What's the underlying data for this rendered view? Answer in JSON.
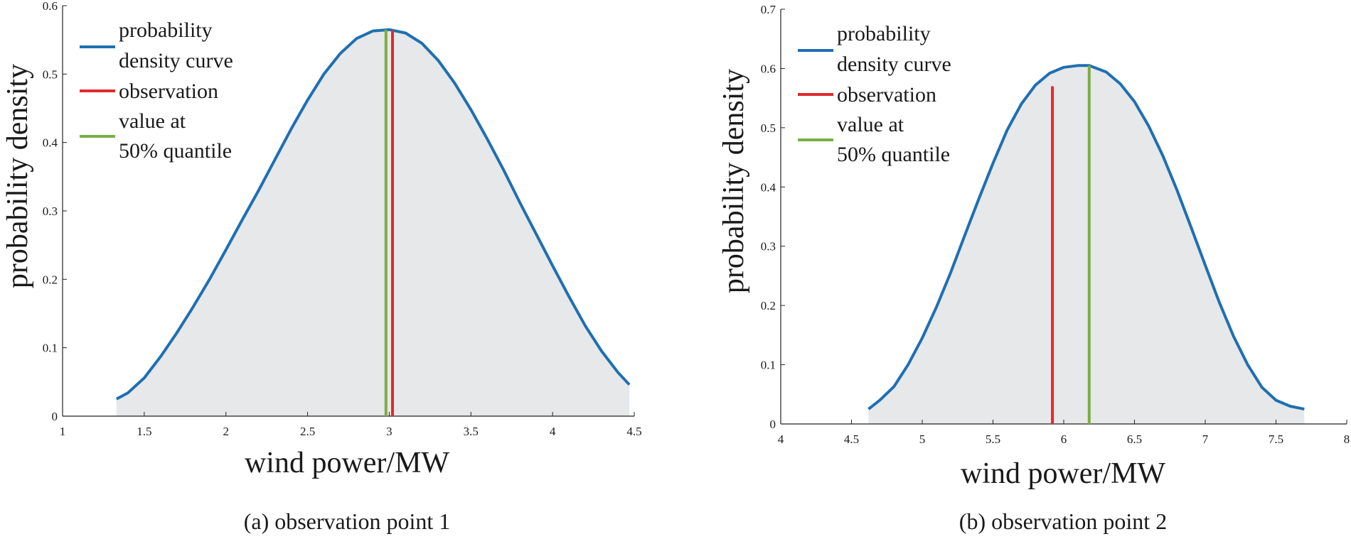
{
  "chart_data": [
    {
      "type": "area",
      "caption": "(a) observation point 1",
      "xlabel": "wind power/MW",
      "ylabel": "probability density",
      "xlim": [
        1,
        4.5
      ],
      "ylim": [
        0,
        0.6
      ],
      "xticks": [
        1,
        1.5,
        2,
        2.5,
        3,
        3.5,
        4,
        4.5
      ],
      "yticks": [
        0,
        0.1,
        0.2,
        0.3,
        0.4,
        0.5,
        0.6
      ],
      "grid": false,
      "legend_position": "top-left",
      "series": [
        {
          "name": "probability density curve",
          "color": "#1f6fb2",
          "x": [
            1.33,
            1.4,
            1.5,
            1.6,
            1.7,
            1.8,
            1.9,
            2.0,
            2.1,
            2.2,
            2.3,
            2.4,
            2.5,
            2.6,
            2.7,
            2.8,
            2.9,
            3.0,
            3.1,
            3.2,
            3.3,
            3.4,
            3.5,
            3.6,
            3.7,
            3.8,
            3.9,
            4.0,
            4.1,
            4.2,
            4.3,
            4.4,
            4.47
          ],
          "y": [
            0.025,
            0.034,
            0.056,
            0.087,
            0.122,
            0.16,
            0.2,
            0.243,
            0.287,
            0.33,
            0.375,
            0.42,
            0.462,
            0.5,
            0.53,
            0.552,
            0.563,
            0.565,
            0.56,
            0.545,
            0.52,
            0.487,
            0.448,
            0.405,
            0.36,
            0.312,
            0.266,
            0.22,
            0.175,
            0.132,
            0.095,
            0.064,
            0.046
          ]
        }
      ],
      "vlines": [
        {
          "name": "observation",
          "x": 3.02,
          "y": 0.565,
          "color": "#e02a2e"
        },
        {
          "name": "value at 50% quantile",
          "x": 2.98,
          "y": 0.565,
          "color": "#7aae45"
        }
      ],
      "fill_color": "#e6e8e9",
      "legend": [
        "probability density curve",
        "observation",
        "value at 50% quantile"
      ]
    },
    {
      "type": "area",
      "caption": "(b) observation point 2",
      "xlabel": "wind power/MW",
      "ylabel": "probability density",
      "xlim": [
        4,
        8
      ],
      "ylim": [
        0,
        0.7
      ],
      "xticks": [
        4,
        4.5,
        5,
        5.5,
        6,
        6.5,
        7,
        7.5,
        8
      ],
      "yticks": [
        0,
        0.1,
        0.2,
        0.3,
        0.4,
        0.5,
        0.6,
        0.7
      ],
      "grid": false,
      "legend_position": "top-left",
      "series": [
        {
          "name": "probability density curve",
          "color": "#1f6fb2",
          "x": [
            4.62,
            4.7,
            4.8,
            4.9,
            5.0,
            5.1,
            5.2,
            5.3,
            5.4,
            5.5,
            5.6,
            5.7,
            5.8,
            5.9,
            6.0,
            6.1,
            6.18,
            6.3,
            6.4,
            6.5,
            6.6,
            6.7,
            6.8,
            6.9,
            7.0,
            7.1,
            7.2,
            7.3,
            7.4,
            7.5,
            7.6,
            7.7
          ],
          "y": [
            0.025,
            0.04,
            0.063,
            0.1,
            0.145,
            0.197,
            0.255,
            0.318,
            0.38,
            0.44,
            0.496,
            0.54,
            0.572,
            0.592,
            0.602,
            0.605,
            0.605,
            0.594,
            0.574,
            0.544,
            0.503,
            0.453,
            0.395,
            0.332,
            0.268,
            0.205,
            0.148,
            0.1,
            0.062,
            0.04,
            0.03,
            0.025
          ]
        }
      ],
      "vlines": [
        {
          "name": "observation",
          "x": 5.92,
          "y": 0.57,
          "color": "#e02a2e"
        },
        {
          "name": "value at 50% quantile",
          "x": 6.18,
          "y": 0.605,
          "color": "#7aae45"
        }
      ],
      "fill_color": "#e6e8e9",
      "legend": [
        "probability density curve",
        "observation",
        "value at 50% quantile"
      ]
    }
  ]
}
